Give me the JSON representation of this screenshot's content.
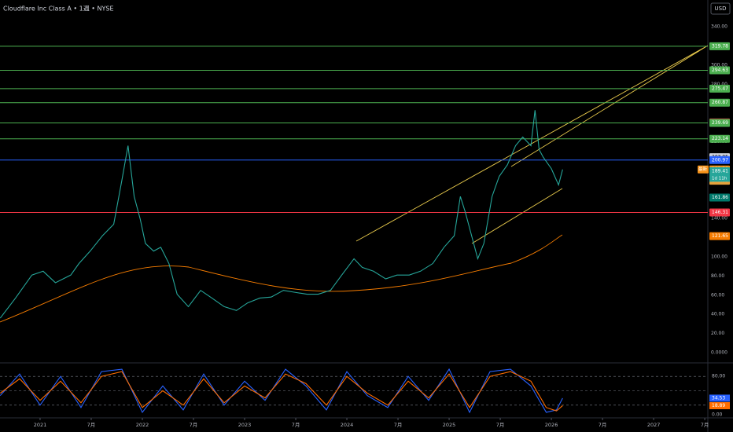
{
  "chart_data": {
    "type": "line",
    "title": "Cloudflare Inc Class A • 1週 • NYSE",
    "currency": "USD",
    "x": [
      2020.61,
      2020.76,
      2020.92,
      2021.03,
      2021.15,
      2021.3,
      2021.38,
      2021.49,
      2021.61,
      2021.72,
      2021.8,
      2021.86,
      2021.92,
      2021.98,
      2022.03,
      2022.11,
      2022.18,
      2022.26,
      2022.34,
      2022.45,
      2022.57,
      2022.68,
      2022.8,
      2022.92,
      2023.03,
      2023.15,
      2023.26,
      2023.38,
      2023.49,
      2023.61,
      2023.72,
      2023.84,
      2023.95,
      2024.07,
      2024.15,
      2024.26,
      2024.38,
      2024.49,
      2024.61,
      2024.72,
      2024.84,
      2024.95,
      2025.05,
      2025.11,
      2025.16,
      2025.22,
      2025.28,
      2025.34,
      2025.42,
      2025.49,
      2025.57,
      2025.65,
      2025.72,
      2025.8,
      2025.84,
      2025.88,
      2025.92,
      2026.0,
      2026.07,
      2026.11
    ],
    "series": [
      {
        "name": "Close",
        "color": "#26a69a",
        "values": [
          36,
          57,
          81,
          85,
          73,
          81,
          93,
          106,
          122,
          134,
          180,
          216,
          163,
          139,
          114,
          106,
          110,
          93,
          61,
          48,
          65,
          57,
          48,
          44,
          52,
          57,
          58,
          65,
          63,
          61,
          61,
          65,
          81,
          98,
          89,
          85,
          77,
          81,
          81,
          85,
          93,
          110,
          122,
          163,
          146,
          122,
          98,
          114,
          163,
          184,
          196,
          216,
          225,
          216,
          253,
          212,
          204,
          192,
          175,
          191.2
        ]
      }
    ],
    "xlim": [
      2020.608,
      2027.53
    ],
    "xticks": [
      {
        "value": 2021,
        "label": "2021"
      },
      {
        "value": 2021.5,
        "label": "7月"
      },
      {
        "value": 2022,
        "label": "2022"
      },
      {
        "value": 2022.5,
        "label": "7月"
      },
      {
        "value": 2023,
        "label": "2023"
      },
      {
        "value": 2023.5,
        "label": "7月"
      },
      {
        "value": 2024,
        "label": "2024"
      },
      {
        "value": 2024.5,
        "label": "7月"
      },
      {
        "value": 2025,
        "label": "2025"
      },
      {
        "value": 2025.5,
        "label": "7月"
      },
      {
        "value": 2026,
        "label": "2026"
      },
      {
        "value": 2026.5,
        "label": "7月"
      },
      {
        "value": 2027,
        "label": "2027"
      },
      {
        "value": 2027.5,
        "label": "7月"
      }
    ],
    "ylim": [
      0,
      368
    ],
    "yticks": [
      {
        "value": 0,
        "label": "0.0000"
      },
      {
        "value": 20,
        "label": "20.00"
      },
      {
        "value": 40,
        "label": "40.00"
      },
      {
        "value": 60,
        "label": "60.00"
      },
      {
        "value": 80,
        "label": "80.00"
      },
      {
        "value": 100,
        "label": "100.00"
      },
      {
        "value": 120,
        "label": "120.00"
      },
      {
        "value": 140,
        "label": "140.00"
      },
      {
        "value": 160,
        "label": "160.00"
      },
      {
        "value": 180,
        "label": "180.00"
      },
      {
        "value": 200,
        "label": "200.00"
      },
      {
        "value": 220,
        "label": "220.00"
      },
      {
        "value": 240,
        "label": "240.00"
      },
      {
        "value": 260,
        "label": "260.00"
      },
      {
        "value": 280,
        "label": "280.00"
      },
      {
        "value": 300,
        "label": "300.00"
      },
      {
        "value": 320,
        "label": "320.00"
      },
      {
        "value": 340,
        "label": "340.00"
      }
    ],
    "levels": [
      {
        "value": 319.78,
        "color": "#4caf50",
        "line": true
      },
      {
        "value": 294.63,
        "color": "#4caf50",
        "line": true
      },
      {
        "value": 275.47,
        "color": "#4caf50",
        "line": true
      },
      {
        "value": 260.87,
        "color": "#4caf50",
        "line": true
      },
      {
        "value": 240.28,
        "color": "#f23645",
        "line": false
      },
      {
        "value": 239.69,
        "color": "#4caf50",
        "line": true
      },
      {
        "value": 223.14,
        "color": "#4caf50",
        "line": true
      },
      {
        "value": 203.95,
        "color": "#d1d4dc",
        "line": false
      },
      {
        "value": 200.97,
        "color": "#2962ff",
        "line": true
      },
      {
        "value": 191.2,
        "label": "191.20",
        "color": "#f7931a",
        "line": false
      },
      {
        "value": 189.41,
        "color": "#26a69a",
        "line": false
      },
      {
        "value": 179.35,
        "color": "#e6a23c",
        "line": false
      },
      {
        "value": 161.86,
        "color": "#00796b",
        "line": false
      },
      {
        "value": 146.31,
        "color": "#f23645",
        "line": true
      },
      {
        "value": 121.65,
        "color": "#f57c00",
        "line": false
      }
    ],
    "latest_tag": "最新",
    "countdown": "1d 11h",
    "oscillator": {
      "x": [
        2020.61,
        2020.8,
        2021.0,
        2021.2,
        2021.4,
        2021.6,
        2021.8,
        2022.0,
        2022.2,
        2022.4,
        2022.6,
        2022.8,
        2023.0,
        2023.2,
        2023.4,
        2023.6,
        2023.8,
        2024.0,
        2024.2,
        2024.4,
        2024.6,
        2024.8,
        2025.0,
        2025.2,
        2025.4,
        2025.6,
        2025.8,
        2025.95,
        2026.05,
        2026.11
      ],
      "ylim": [
        0,
        100
      ],
      "yticks": [
        {
          "value": 0,
          "label": "0.00"
        },
        {
          "value": 20,
          "label": "20.00"
        },
        {
          "value": 50,
          "label": "50.00"
        },
        {
          "value": 80,
          "label": "80.00"
        }
      ],
      "series": [
        {
          "name": "K",
          "color": "#2962ff",
          "values": [
            40,
            85,
            20,
            80,
            15,
            90,
            95,
            5,
            60,
            10,
            85,
            20,
            70,
            30,
            95,
            60,
            10,
            90,
            40,
            15,
            80,
            30,
            95,
            5,
            90,
            95,
            60,
            5,
            10,
            34.53
          ]
        },
        {
          "name": "D",
          "color": "#ff6d00",
          "values": [
            45,
            75,
            30,
            70,
            25,
            80,
            90,
            15,
            50,
            20,
            75,
            25,
            60,
            35,
            85,
            65,
            20,
            80,
            45,
            20,
            70,
            35,
            85,
            15,
            80,
            90,
            70,
            15,
            8,
            18.89
          ]
        }
      ]
    }
  }
}
